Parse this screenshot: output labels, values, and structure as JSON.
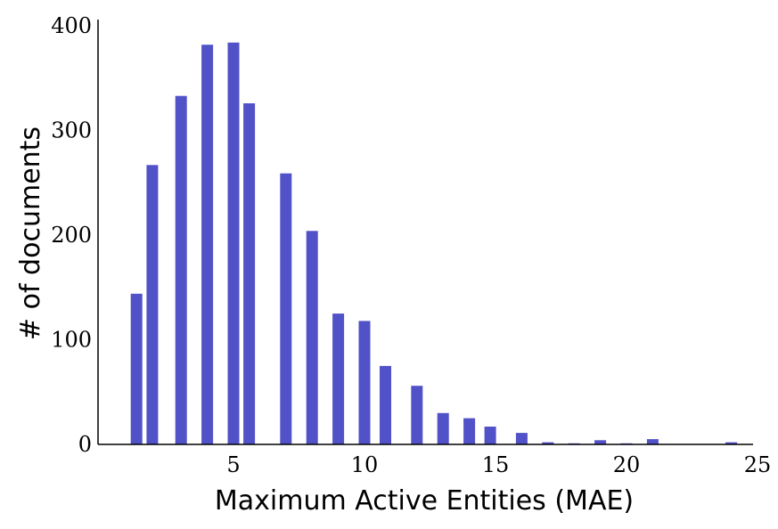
{
  "chart_data": {
    "type": "bar",
    "xlabel": "Maximum Active Entities (MAE)",
    "ylabel": "# of documents",
    "xlim": [
      0,
      25
    ],
    "ylim": [
      0,
      400
    ],
    "xticks": [
      5,
      10,
      15,
      20,
      25
    ],
    "yticks": [
      0,
      100,
      200,
      300,
      400
    ],
    "bar_color": "#5252c8",
    "grid": false,
    "x": [
      1.3,
      1.9,
      3,
      4,
      5,
      5.6,
      7,
      8,
      9,
      10,
      10.8,
      12,
      13,
      14,
      14.8,
      16,
      17,
      18,
      19,
      20,
      21,
      24
    ],
    "values": [
      144,
      267,
      333,
      382,
      384,
      326,
      259,
      204,
      125,
      118,
      75,
      56,
      30,
      25,
      17,
      11,
      2,
      1,
      4,
      1,
      5,
      2
    ]
  }
}
